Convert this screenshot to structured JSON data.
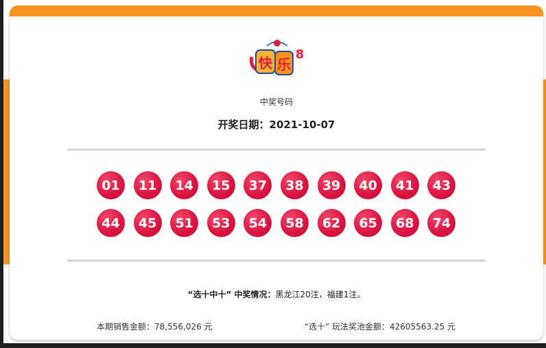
{
  "logo": {
    "text": "快乐8",
    "colors": {
      "primary": "#f7931e",
      "red": "#e0203a",
      "blue": "#1c4fa0"
    }
  },
  "subtitle": "中奖号码",
  "draw_date_label": "开奖日期：",
  "draw_date": "2021-10-07",
  "numbers": [
    "01",
    "11",
    "14",
    "15",
    "37",
    "38",
    "39",
    "40",
    "41",
    "43",
    "44",
    "45",
    "51",
    "53",
    "54",
    "58",
    "62",
    "65",
    "68",
    "74"
  ],
  "winning": {
    "label": "“选十中十” 中奖情况：",
    "detail": "黑龙江20注，福建1注。"
  },
  "sales": {
    "label": "本期销售金额：",
    "value": "78,556,026 元"
  },
  "pool": {
    "label": "“选十” 玩法奖池金额：",
    "value": "42605563.25 元"
  },
  "colors": {
    "accent": "#f7931e",
    "ball": "#d9133f"
  }
}
